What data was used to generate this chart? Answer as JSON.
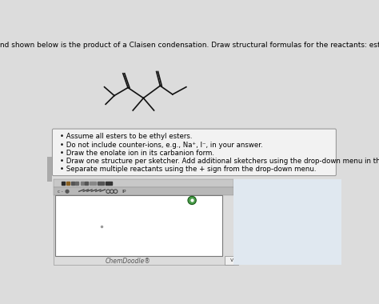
{
  "bg_color": "#dcdcdc",
  "title_text": "The compound shown below is the product of a Claisen condensation. Draw structural formulas for the reactants: ester and enolate",
  "title_fontsize": 6.5,
  "bullet_points": [
    "Assume all esters to be ethyl esters.",
    "Do not include counter-ions, e.g., Na⁺, I⁻, in your answer.",
    "Draw the enolate ion in its carbanion form.",
    "Draw one structure per sketcher. Add additional sketchers using the drop-down menu in the bottom right corner.",
    "Separate multiple reactants using the + sign from the drop-down menu."
  ],
  "bullet_fontsize": 6.2,
  "box_bg": "#f2f2f2",
  "box_edge": "#999999",
  "sketcher_bg": "#ffffff",
  "sketcher_edge": "#777777",
  "toolbar_bg": "#c8c8c8",
  "toolbar2_bg": "#b8b8b8",
  "chemdoodle_label": "ChemDoodle®",
  "molecule_color": "#111111",
  "green_circle_color": "#2d6e2d",
  "green_circle_inner": "#4a9e4a",
  "left_bar_color": "#aaaaaa",
  "canvas_bg": "#e0e8f0"
}
